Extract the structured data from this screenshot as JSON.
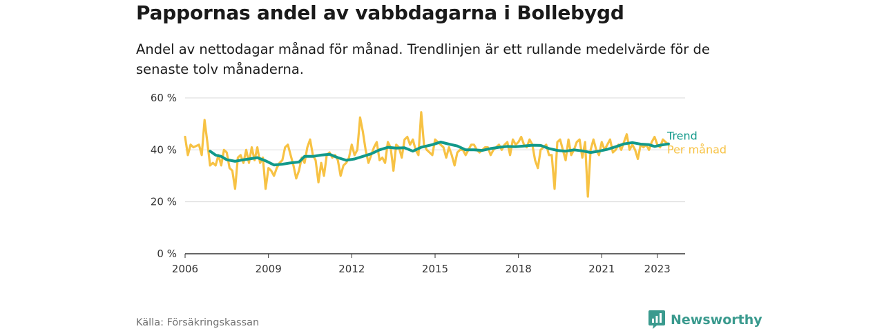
{
  "header": {
    "title": "Pappornas andel av vabbdagarna i Bollebygd",
    "subtitle": "Andel av nettodagar månad för månad. Trendlinjen är ett rullande medelvärde för de senaste tolv månaderna."
  },
  "footer": {
    "source": "Källa: Försäkringskassan",
    "brand": "Newsworthy",
    "brand_icon": "bar-chart-speech-bubble-icon"
  },
  "colors": {
    "monthly": "#f7c244",
    "trend": "#12998a",
    "grid": "#d9d9d9",
    "axis": "#333333"
  },
  "chart_data": {
    "type": "line",
    "x_unit": "year",
    "xlim": [
      2006,
      2024
    ],
    "ylim": [
      0,
      60
    ],
    "y_ticks": [
      0,
      20,
      40,
      60
    ],
    "y_tick_labels": [
      "0 %",
      "20 %",
      "40 %",
      "60 %"
    ],
    "x_ticks": [
      2006,
      2009,
      2012,
      2015,
      2018,
      2021,
      2023
    ],
    "x_tick_labels": [
      "2006",
      "2009",
      "2012",
      "2015",
      "2018",
      "2021",
      "2023"
    ],
    "grid": true,
    "legend": "inline labels at right end of lines",
    "series": [
      {
        "name": "Trend",
        "x": [
          2006.9,
          2007.1,
          2007.3,
          2007.5,
          2007.8,
          2008.0,
          2008.3,
          2008.6,
          2008.9,
          2009.2,
          2009.5,
          2009.8,
          2010.1,
          2010.3,
          2010.6,
          2010.9,
          2011.2,
          2011.5,
          2011.8,
          2012.1,
          2012.4,
          2012.7,
          2013.0,
          2013.3,
          2013.6,
          2013.9,
          2014.2,
          2014.5,
          2014.7,
          2014.9,
          2015.2,
          2015.5,
          2015.8,
          2016.1,
          2016.4,
          2016.7,
          2017.0,
          2017.3,
          2017.6,
          2017.9,
          2018.2,
          2018.5,
          2018.8,
          2019.1,
          2019.4,
          2019.7,
          2020.0,
          2020.3,
          2020.6,
          2020.9,
          2021.2,
          2021.5,
          2021.8,
          2022.1,
          2022.4,
          2022.7,
          2022.9,
          2023.1,
          2023.4
        ],
        "y": [
          39.5,
          38.0,
          37.5,
          36.2,
          35.6,
          36.0,
          36.5,
          37.0,
          35.8,
          34.2,
          34.5,
          35.0,
          35.3,
          37.5,
          37.5,
          38.0,
          38.3,
          37.0,
          36.0,
          36.5,
          37.5,
          38.5,
          40.0,
          41.0,
          40.7,
          40.8,
          39.5,
          41.0,
          41.5,
          42.0,
          43.0,
          42.2,
          41.5,
          40.0,
          40.0,
          39.8,
          40.5,
          41.0,
          41.3,
          41.2,
          41.5,
          41.8,
          41.7,
          40.5,
          39.8,
          39.5,
          40.0,
          39.6,
          39.0,
          39.5,
          40.2,
          41.2,
          42.3,
          42.8,
          42.2,
          42.0,
          41.3,
          41.8,
          42.3
        ]
      },
      {
        "name": "Per månad",
        "x": [
          2006.0,
          2006.1,
          2006.2,
          2006.3,
          2006.5,
          2006.6,
          2006.7,
          2006.8,
          2006.9,
          2007.0,
          2007.1,
          2007.2,
          2007.3,
          2007.4,
          2007.5,
          2007.6,
          2007.7,
          2007.8,
          2007.9,
          2008.0,
          2008.1,
          2008.2,
          2008.3,
          2008.4,
          2008.5,
          2008.6,
          2008.7,
          2008.8,
          2008.9,
          2009.0,
          2009.1,
          2009.2,
          2009.3,
          2009.4,
          2009.5,
          2009.6,
          2009.7,
          2009.8,
          2009.9,
          2010.0,
          2010.1,
          2010.2,
          2010.3,
          2010.4,
          2010.5,
          2010.6,
          2010.7,
          2010.8,
          2010.9,
          2011.0,
          2011.1,
          2011.2,
          2011.3,
          2011.4,
          2011.5,
          2011.6,
          2011.7,
          2011.8,
          2011.9,
          2012.0,
          2012.1,
          2012.2,
          2012.3,
          2012.4,
          2012.5,
          2012.6,
          2012.7,
          2012.8,
          2012.9,
          2013.0,
          2013.1,
          2013.2,
          2013.3,
          2013.4,
          2013.5,
          2013.6,
          2013.7,
          2013.8,
          2013.9,
          2014.0,
          2014.1,
          2014.2,
          2014.3,
          2014.4,
          2014.5,
          2014.6,
          2014.7,
          2014.8,
          2014.9,
          2015.0,
          2015.1,
          2015.2,
          2015.3,
          2015.4,
          2015.5,
          2015.6,
          2015.7,
          2015.8,
          2015.9,
          2016.0,
          2016.1,
          2016.2,
          2016.3,
          2016.4,
          2016.5,
          2016.6,
          2016.7,
          2016.8,
          2016.9,
          2017.0,
          2017.1,
          2017.2,
          2017.3,
          2017.4,
          2017.5,
          2017.6,
          2017.7,
          2017.8,
          2017.9,
          2018.0,
          2018.1,
          2018.2,
          2018.3,
          2018.4,
          2018.5,
          2018.6,
          2018.7,
          2018.8,
          2018.9,
          2019.0,
          2019.1,
          2019.2,
          2019.3,
          2019.4,
          2019.5,
          2019.6,
          2019.7,
          2019.8,
          2019.9,
          2020.0,
          2020.1,
          2020.2,
          2020.3,
          2020.4,
          2020.5,
          2020.6,
          2020.7,
          2020.8,
          2020.9,
          2021.0,
          2021.1,
          2021.2,
          2021.3,
          2021.4,
          2021.5,
          2021.6,
          2021.7,
          2021.8,
          2021.9,
          2022.0,
          2022.1,
          2022.2,
          2022.3,
          2022.4,
          2022.5,
          2022.6,
          2022.7,
          2022.8,
          2022.9,
          2023.0,
          2023.1,
          2023.2,
          2023.3,
          2023.4
        ],
        "y": [
          45,
          38,
          42,
          41,
          42,
          38,
          51.5,
          43,
          34,
          35,
          34,
          38,
          34,
          40,
          39,
          33,
          32,
          25,
          37,
          38,
          35,
          40,
          35,
          41,
          36,
          41,
          35,
          37,
          25,
          33,
          32,
          30,
          33,
          35,
          36,
          41,
          42,
          38,
          34,
          29,
          32,
          37,
          35,
          41,
          44,
          38,
          36,
          27.5,
          35,
          30,
          38,
          39,
          37,
          38,
          36,
          30,
          34,
          35,
          37,
          42,
          38,
          40,
          52.5,
          47,
          40,
          35,
          38,
          41,
          43,
          36,
          37,
          35,
          43,
          41,
          32,
          42,
          41,
          37,
          44,
          45,
          42,
          44,
          40,
          38,
          54.5,
          42,
          40,
          39,
          38,
          44,
          43,
          42,
          41,
          37,
          41,
          38,
          34,
          39,
          40,
          40,
          38,
          40,
          42,
          42,
          40,
          39,
          40,
          41,
          41,
          38,
          40,
          41,
          42,
          40,
          42,
          43,
          38,
          44,
          42,
          43,
          45,
          42,
          41,
          44,
          42,
          36,
          33,
          40,
          41,
          42,
          38,
          38,
          25,
          43,
          44,
          40,
          36,
          44,
          38,
          40,
          43,
          44,
          37,
          43,
          22,
          40,
          44,
          40,
          38,
          43,
          40,
          42,
          44,
          39,
          40,
          42,
          40,
          43,
          46,
          40,
          42,
          40,
          36.5,
          42,
          41,
          42,
          40,
          43,
          45,
          42,
          41,
          44,
          43,
          42
        ]
      }
    ]
  }
}
